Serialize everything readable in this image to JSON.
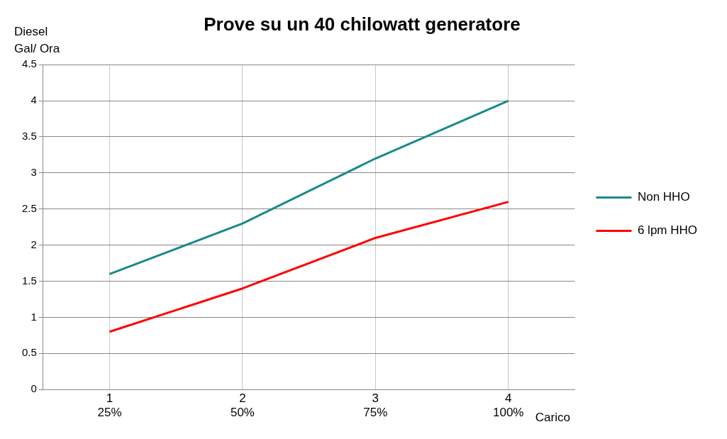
{
  "chart_data": {
    "type": "line",
    "title": "Prove su un 40 chilowatt generatore",
    "xlabel": "Carico",
    "ylabel": "Diesel\nGal/ Ora",
    "categories": [
      "1\n25%",
      "2\n50%",
      "3\n75%",
      "4\n100%"
    ],
    "series": [
      {
        "name": "Non HHO",
        "color": "#1a8a8a",
        "values": [
          1.6,
          2.3,
          3.2,
          4.0
        ]
      },
      {
        "name": "6 lpm HHO",
        "color": "#ff0000",
        "values": [
          0.8,
          1.4,
          2.1,
          2.6
        ]
      }
    ],
    "ylim": [
      0,
      4.5
    ],
    "yticks": [
      0,
      0.5,
      1,
      1.5,
      2,
      2.5,
      3,
      3.5,
      4,
      4.5
    ],
    "grid": true,
    "legend": "right",
    "marker": "none",
    "line_style": "solid"
  }
}
